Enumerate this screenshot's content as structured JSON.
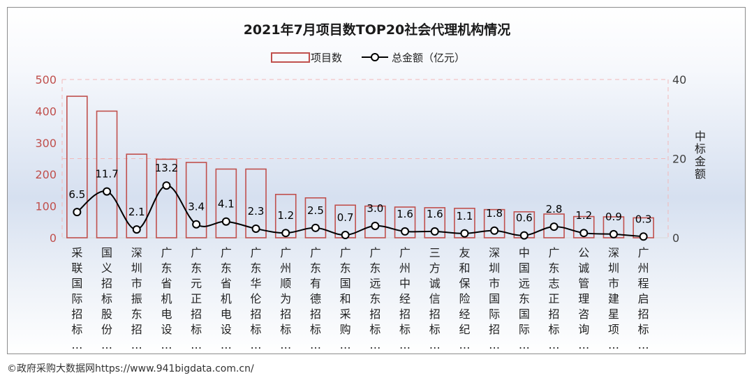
{
  "chart_data": {
    "type": "bar+line",
    "title": "2021年7月项目数TOP20社会代理机构情况",
    "legend": {
      "position": "top",
      "bar_label": "项目数",
      "line_label": "总金额（亿元）"
    },
    "categories": [
      "采联国际招标…",
      "国义招标股份…",
      "深圳市振东招…",
      "广东省机电设…",
      "广东元正招标…",
      "广东省机电设…",
      "广东华伦招标…",
      "广州顺为招标…",
      "广东有德招标…",
      "广东国和采购…",
      "广东远东招标…",
      "广州中经招标…",
      "三方诚信招标…",
      "友和保险经纪…",
      "深圳市国际招…",
      "中国远东国际…",
      "广东志正招标…",
      "公诚管理咨询…",
      "深圳市建星项…",
      "广州程启招标…"
    ],
    "series": [
      {
        "name": "项目数",
        "type": "bar",
        "axis": "left",
        "values": [
          447,
          400,
          264,
          248,
          238,
          217,
          217,
          137,
          126,
          103,
          100,
          97,
          95,
          93,
          89,
          82,
          75,
          67,
          66,
          63
        ]
      },
      {
        "name": "总金额（亿元）",
        "type": "line",
        "axis": "right",
        "values": [
          6.5,
          11.7,
          2.1,
          13.2,
          3.4,
          4.1,
          2.3,
          1.2,
          2.5,
          0.7,
          3.0,
          1.6,
          1.6,
          1.1,
          1.8,
          0.6,
          2.8,
          1.2,
          0.9,
          0.3
        ],
        "labels": [
          "6.5",
          "11.7",
          "2.1",
          "13.2",
          "3.4",
          "4.1",
          "2.3",
          "1.2",
          "2.5",
          "0.7",
          "3.0",
          "1.6",
          "1.6",
          "1.1",
          "1.8",
          "0.6",
          "2.8",
          "1.2",
          "0.9",
          "0.3"
        ]
      }
    ],
    "y_left": {
      "min": 0,
      "max": 500,
      "ticks": [
        "0",
        "100",
        "200",
        "300",
        "400",
        "500"
      ]
    },
    "y_right": {
      "min": 0,
      "max": 40,
      "ticks": [
        "0",
        "20",
        "40"
      ],
      "label": "中标金额"
    },
    "grid": true
  },
  "colors": {
    "bar_stroke": "#c0504d",
    "left_axis_text": "#c0504d",
    "right_axis_text": "#404040",
    "line": "#000000",
    "grid": "#f2b8b8"
  },
  "footer": "©政府采购大数据网https://www.941bigdata.com.cn/"
}
